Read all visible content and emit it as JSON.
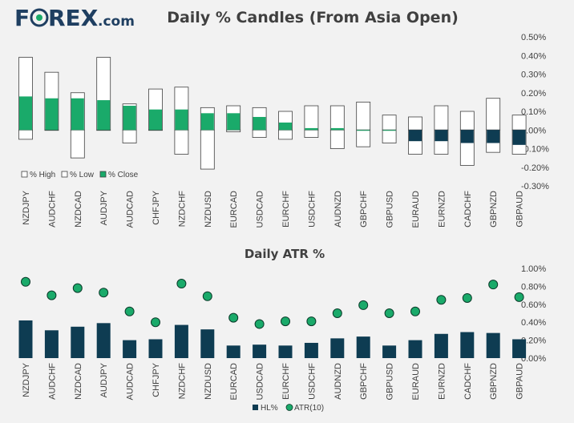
{
  "logo": {
    "part1": "F",
    "part2": "REX",
    "suffix": ".com"
  },
  "chart_data": [
    {
      "type": "bar",
      "title": "Daily % Candles (From Asia Open)",
      "categories": [
        "NZDJPY",
        "AUDCHF",
        "NZDCAD",
        "AUDJPY",
        "AUDCAD",
        "CHFJPY",
        "NZDCHF",
        "NZDUSD",
        "EURCAD",
        "USDCAD",
        "EURCHF",
        "USDCHF",
        "AUDNZD",
        "GBPCHF",
        "GBPUSD",
        "EURAUD",
        "EURNZD",
        "CADCHF",
        "GBPNZD",
        "GBPAUD"
      ],
      "series": [
        {
          "name": "% High",
          "values": [
            0.39,
            0.31,
            0.2,
            0.39,
            0.14,
            0.22,
            0.23,
            0.12,
            0.13,
            0.12,
            0.1,
            0.13,
            0.13,
            0.15,
            0.08,
            0.07,
            0.13,
            0.1,
            0.17,
            0.08
          ]
        },
        {
          "name": "% Low",
          "values": [
            -0.05,
            0.0,
            -0.15,
            0.0,
            -0.07,
            0.0,
            -0.13,
            -0.21,
            -0.01,
            -0.04,
            -0.05,
            -0.04,
            -0.1,
            -0.09,
            -0.07,
            -0.13,
            -0.13,
            -0.19,
            -0.12,
            -0.13
          ]
        },
        {
          "name": "% Close",
          "values": [
            0.18,
            0.17,
            0.17,
            0.16,
            0.13,
            0.11,
            0.11,
            0.09,
            0.09,
            0.07,
            0.04,
            0.01,
            0.01,
            0.0,
            0.0,
            -0.06,
            -0.06,
            -0.07,
            -0.07,
            -0.08
          ]
        }
      ],
      "ylim": [
        -0.3,
        0.5
      ],
      "yticks": [
        "0.50%",
        "0.40%",
        "0.30%",
        "0.20%",
        "0.10%",
        "0.00%",
        "-0.10%",
        "-0.20%",
        "-0.30%"
      ],
      "ytick_values": [
        0.5,
        0.4,
        0.3,
        0.2,
        0.1,
        0.0,
        -0.1,
        -0.2,
        -0.3
      ],
      "legend": [
        "% High",
        "% Low",
        "% Close"
      ],
      "colors": {
        "up": "#1aaa6a",
        "down": "#0e3c52",
        "box": "#ffffff",
        "outline": "#404040"
      }
    },
    {
      "type": "bar",
      "title": "Daily ATR %",
      "categories": [
        "NZDJPY",
        "AUDCHF",
        "NZDCAD",
        "AUDJPY",
        "AUDCAD",
        "CHFJPY",
        "NZDCHF",
        "NZDUSD",
        "EURCAD",
        "USDCAD",
        "EURCHF",
        "USDCHF",
        "AUDNZD",
        "GBPCHF",
        "GBPUSD",
        "EURAUD",
        "EURNZD",
        "CADCHF",
        "GBPNZD",
        "GBPAUD"
      ],
      "series": [
        {
          "name": "HL%",
          "values": [
            0.42,
            0.31,
            0.35,
            0.39,
            0.2,
            0.21,
            0.37,
            0.32,
            0.14,
            0.15,
            0.14,
            0.17,
            0.22,
            0.24,
            0.14,
            0.2,
            0.27,
            0.29,
            0.28,
            0.21
          ]
        },
        {
          "name": "ATR(10)",
          "values": [
            0.85,
            0.7,
            0.78,
            0.73,
            0.52,
            0.4,
            0.83,
            0.69,
            0.45,
            0.38,
            0.41,
            0.41,
            0.5,
            0.59,
            0.5,
            0.52,
            0.65,
            0.67,
            0.82,
            0.68
          ]
        }
      ],
      "ylim": [
        0,
        1.0
      ],
      "yticks": [
        "1.00%",
        "0.80%",
        "0.60%",
        "0.40%",
        "0.20%",
        "0.00%"
      ],
      "ytick_values": [
        1.0,
        0.8,
        0.6,
        0.4,
        0.2,
        0.0
      ],
      "legend": [
        "HL%",
        "ATR(10)"
      ],
      "colors": {
        "bar": "#0e3c52",
        "dot": "#1aaa6a",
        "dot_edge": "#0b3b2a"
      }
    }
  ]
}
